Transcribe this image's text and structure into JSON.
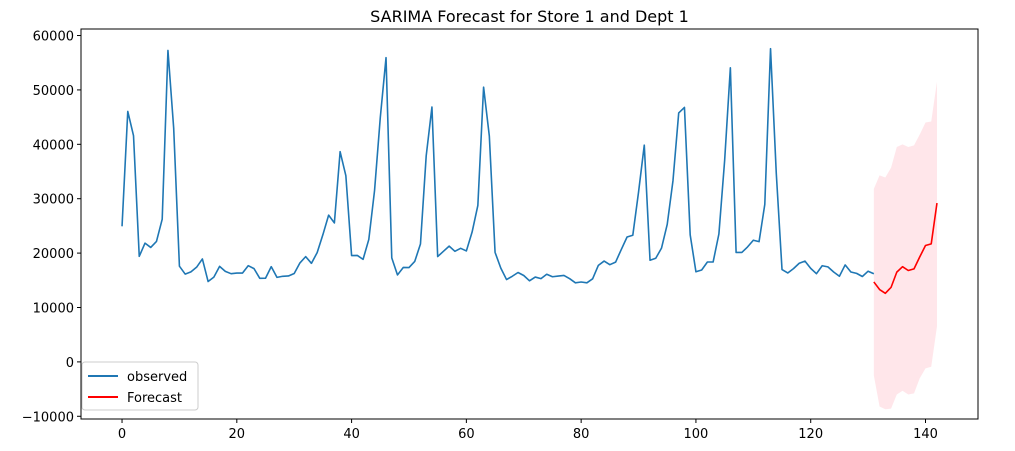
{
  "chart_data": {
    "type": "line",
    "title": "SARIMA Forecast for Store 1 and Dept 1",
    "xlabel": "",
    "ylabel": "",
    "xlim": [
      -7.15,
      149.15
    ],
    "ylim": [
      -10500,
      61200
    ],
    "xticks": [
      0,
      20,
      40,
      60,
      80,
      100,
      120,
      140
    ],
    "yticks": [
      -10000,
      0,
      10000,
      20000,
      30000,
      40000,
      50000,
      60000
    ],
    "grid": false,
    "legend_position": "lower-left",
    "series": [
      {
        "name": "observed",
        "color": "#1f77b4",
        "x_start": 0,
        "values": [
          24924,
          46039,
          41596,
          19404,
          21828,
          21043,
          22137,
          26229,
          57258,
          42961,
          17596,
          16145,
          16555,
          17414,
          18926,
          14773,
          15580,
          17558,
          16637,
          16216,
          16328,
          16333,
          17688,
          17150,
          15360,
          15381,
          17508,
          15536,
          15740,
          15794,
          16241,
          18194,
          19354,
          18122,
          20094,
          23388,
          26979,
          25543,
          38640,
          34239,
          19550,
          19571,
          18850,
          22517,
          31498,
          44912,
          55931,
          19124,
          15984,
          17359,
          17341,
          18461,
          21665,
          37887,
          46846,
          19363,
          20327,
          21280,
          20334,
          20881,
          20398,
          23874,
          28762,
          50511,
          41512,
          20138,
          17235,
          15136,
          15741,
          16434,
          15884,
          14903,
          15594,
          15300,
          16109,
          15650,
          15774,
          15900,
          15300,
          14539,
          14689,
          14537,
          15277,
          17746,
          18536,
          17873,
          18337,
          20680,
          22960,
          23275,
          31207,
          39846,
          18689,
          19050,
          20911,
          25294,
          33306,
          45773,
          46788,
          23350,
          16567,
          16894,
          18365,
          18379,
          23510,
          36989,
          54060,
          20124,
          20113,
          21140,
          22366,
          22108,
          28952,
          57592,
          34684,
          16976,
          16348,
          17148,
          18136,
          18526,
          17196,
          16220,
          17677,
          17472,
          16522,
          15748,
          17825,
          16530,
          16273,
          15700,
          16669,
          16200
        ]
      },
      {
        "name": "Forecast",
        "color": "#ff0000",
        "x_start": 131,
        "values": [
          14700,
          13300,
          12600,
          13700,
          16500,
          17500,
          16800,
          17100,
          19300,
          21400,
          21700,
          29200
        ]
      }
    ],
    "confidence_band": {
      "color": "#ffc0cb",
      "x_start": 131,
      "lower": [
        -2500,
        -8200,
        -8700,
        -8600,
        -6000,
        -5300,
        -6000,
        -5800,
        -3000,
        -1200,
        -900,
        6500
      ],
      "upper": [
        31800,
        34300,
        33900,
        35700,
        39500,
        40000,
        39500,
        39800,
        41800,
        44000,
        44200,
        51500
      ]
    }
  }
}
